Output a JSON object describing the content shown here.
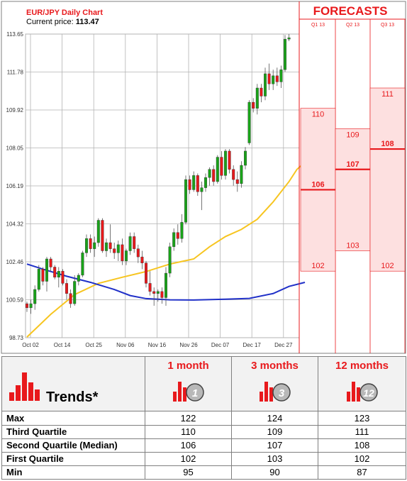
{
  "title": "EUR/JPY Daily Chart",
  "price_label": "Current price:",
  "price_value": "113.47",
  "forecasts_label": "FORECASTS",
  "quarters": [
    "Q1 13",
    "Q2 13",
    "Q3 13"
  ],
  "chart_data": {
    "type": "candlestick",
    "title": "EUR/JPY Daily Chart",
    "ylim": [
      98.73,
      113.65
    ],
    "y_ticks": [
      98.73,
      100.59,
      102.46,
      104.32,
      106.19,
      108.05,
      109.92,
      111.78,
      113.65
    ],
    "x_ticks": [
      "Oct 02",
      "Oct 14",
      "Oct 25",
      "Nov 06",
      "Nov 16",
      "Nov 26",
      "Dec 07",
      "Dec 17",
      "Dec 27"
    ],
    "candles": [
      [
        100.4,
        100.5,
        100.0,
        100.2
      ],
      [
        100.2,
        100.6,
        99.9,
        100.4
      ],
      [
        100.4,
        101.3,
        100.1,
        101.1
      ],
      [
        101.1,
        102.3,
        101.0,
        102.1
      ],
      [
        102.1,
        102.2,
        101.3,
        101.5
      ],
      [
        101.5,
        102.7,
        101.0,
        102.6
      ],
      [
        102.6,
        102.7,
        102.0,
        102.2
      ],
      [
        102.2,
        102.3,
        101.6,
        101.7
      ],
      [
        101.7,
        102.2,
        101.2,
        102.0
      ],
      [
        102.0,
        102.1,
        101.3,
        101.4
      ],
      [
        101.4,
        101.6,
        100.6,
        100.9
      ],
      [
        100.9,
        101.1,
        100.2,
        100.4
      ],
      [
        100.4,
        101.8,
        100.3,
        101.5
      ],
      [
        101.5,
        101.9,
        101.3,
        101.8
      ],
      [
        101.8,
        103.0,
        101.7,
        102.9
      ],
      [
        102.9,
        103.8,
        102.7,
        103.6
      ],
      [
        103.6,
        103.8,
        102.9,
        103.1
      ],
      [
        103.1,
        103.7,
        102.7,
        103.4
      ],
      [
        103.4,
        104.6,
        103.2,
        104.5
      ],
      [
        104.5,
        104.6,
        102.9,
        103.0
      ],
      [
        103.0,
        103.6,
        102.7,
        103.4
      ],
      [
        103.4,
        104.3,
        102.9,
        103.1
      ],
      [
        103.1,
        103.4,
        102.6,
        102.9
      ],
      [
        102.9,
        103.5,
        102.5,
        103.3
      ],
      [
        103.3,
        103.6,
        102.3,
        102.5
      ],
      [
        102.5,
        103.1,
        102.3,
        103.0
      ],
      [
        103.0,
        103.9,
        102.8,
        103.7
      ],
      [
        103.7,
        103.9,
        102.9,
        103.1
      ],
      [
        103.1,
        103.3,
        102.4,
        102.7
      ],
      [
        102.7,
        103.0,
        102.1,
        102.4
      ],
      [
        102.4,
        102.5,
        101.2,
        101.4
      ],
      [
        101.4,
        102.0,
        100.8,
        101.0
      ],
      [
        101.0,
        101.2,
        100.3,
        100.9
      ],
      [
        100.9,
        101.1,
        100.5,
        101.0
      ],
      [
        101.0,
        101.2,
        100.4,
        100.7
      ],
      [
        100.7,
        102.2,
        100.3,
        101.9
      ],
      [
        101.9,
        103.4,
        101.7,
        103.2
      ],
      [
        103.2,
        104.1,
        103.0,
        103.9
      ],
      [
        103.9,
        104.3,
        103.3,
        103.6
      ],
      [
        103.6,
        104.8,
        103.4,
        104.4
      ],
      [
        104.4,
        106.7,
        104.3,
        106.5
      ],
      [
        106.5,
        106.7,
        105.8,
        106.0
      ],
      [
        106.0,
        106.9,
        105.9,
        106.7
      ],
      [
        106.7,
        106.8,
        105.7,
        105.9
      ],
      [
        105.9,
        106.4,
        105.0,
        106.1
      ],
      [
        106.1,
        106.8,
        105.9,
        106.6
      ],
      [
        106.6,
        107.1,
        106.2,
        107.0
      ],
      [
        107.0,
        107.2,
        106.2,
        106.4
      ],
      [
        106.4,
        107.7,
        106.3,
        107.6
      ],
      [
        107.6,
        107.9,
        106.5,
        106.7
      ],
      [
        106.7,
        108.0,
        106.5,
        107.9
      ],
      [
        107.9,
        108.0,
        106.8,
        107.0
      ],
      [
        107.0,
        107.2,
        106.2,
        106.5
      ],
      [
        106.5,
        106.9,
        105.9,
        106.3
      ],
      [
        106.3,
        107.4,
        106.1,
        107.2
      ],
      [
        107.2,
        108.1,
        107.0,
        107.9
      ],
      [
        108.3,
        110.4,
        108.2,
        110.3
      ],
      [
        110.3,
        110.5,
        109.8,
        110.0
      ],
      [
        110.0,
        111.2,
        109.7,
        111.0
      ],
      [
        111.0,
        111.2,
        110.3,
        110.6
      ],
      [
        110.6,
        112.0,
        110.4,
        111.7
      ],
      [
        111.7,
        112.2,
        110.9,
        111.2
      ],
      [
        111.2,
        111.9,
        110.9,
        111.6
      ],
      [
        111.6,
        112.0,
        111.1,
        111.3
      ],
      [
        111.3,
        112.1,
        111.0,
        111.9
      ],
      [
        111.9,
        113.6,
        111.8,
        113.4
      ],
      [
        113.4,
        113.65,
        113.3,
        113.47
      ]
    ],
    "series": [
      {
        "color": "#f7c520",
        "values": [
          [
            0,
            98.76
          ],
          [
            6,
            99.88
          ],
          [
            12,
            100.85
          ],
          [
            18,
            101.4
          ],
          [
            24,
            101.7
          ],
          [
            30,
            101.98
          ],
          [
            36,
            102.35
          ],
          [
            42,
            102.6
          ],
          [
            46,
            103.2
          ],
          [
            50,
            103.7
          ],
          [
            54,
            104.05
          ],
          [
            58,
            104.55
          ],
          [
            62,
            105.4
          ],
          [
            66,
            106.4
          ],
          [
            68,
            107.0
          ],
          [
            70,
            107.35
          ]
        ]
      },
      {
        "color": "#2030c8",
        "values": [
          [
            0,
            102.35
          ],
          [
            4,
            102.1
          ],
          [
            10,
            101.75
          ],
          [
            16,
            101.45
          ],
          [
            22,
            101.1
          ],
          [
            26,
            100.8
          ],
          [
            30,
            100.65
          ],
          [
            36,
            100.59
          ],
          [
            42,
            100.58
          ],
          [
            50,
            100.62
          ],
          [
            56,
            100.66
          ],
          [
            62,
            100.9
          ],
          [
            66,
            101.25
          ],
          [
            70,
            101.45
          ]
        ]
      }
    ],
    "forecast_columns": [
      {
        "quarter": "Q1 13",
        "high": 110,
        "median": 106,
        "low": 102
      },
      {
        "quarter": "Q2 13",
        "high": 109,
        "median": 107,
        "low": 103
      },
      {
        "quarter": "Q3 13",
        "high": 111,
        "median": 108,
        "low": 102
      }
    ]
  },
  "table": {
    "trends_label": "Trends*",
    "columns": [
      {
        "label": "1 month",
        "badge": "1"
      },
      {
        "label": "3 months",
        "badge": "3"
      },
      {
        "label": "12 months",
        "badge": "12"
      }
    ],
    "rows": [
      {
        "label": "Max",
        "values": [
          "122",
          "124",
          "123"
        ]
      },
      {
        "label": "Third Quartile",
        "values": [
          "110",
          "109",
          "111"
        ]
      },
      {
        "label": "Second Quartile (Median)",
        "values": [
          "106",
          "107",
          "108"
        ]
      },
      {
        "label": "First Quartile",
        "values": [
          "102",
          "103",
          "102"
        ]
      },
      {
        "label": "Min",
        "values": [
          "95",
          "90",
          "87"
        ]
      }
    ]
  },
  "colors": {
    "up": "#19a319",
    "down": "#e8191c",
    "forecast_fill": "#fde0e0",
    "forecast_line": "#e8191c",
    "grid": "#b3b3b3"
  }
}
